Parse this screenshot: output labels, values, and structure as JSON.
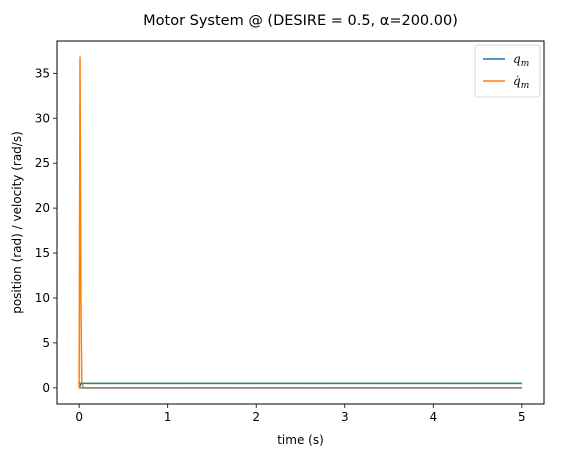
{
  "chart_data": {
    "type": "line",
    "title": "Motor System @ (DESIRE = 0.5, α=200.00)",
    "xlabel": "time (s)",
    "ylabel": "position (rad) / velocity (rad/s)",
    "xlim": [
      -0.25,
      5.25
    ],
    "ylim": [
      -1.8,
      38.6
    ],
    "xticks": [
      0,
      1,
      2,
      3,
      4,
      5
    ],
    "yticks": [
      0,
      5,
      10,
      15,
      20,
      25,
      30,
      35
    ],
    "grid": false,
    "legend_position": "top-right",
    "series": [
      {
        "name": "q_m",
        "legend_main": "q",
        "legend_sub": "m",
        "color": "#1f77b4",
        "dash": "solid",
        "x": [
          0,
          0.02,
          0.04,
          0.06,
          0.1,
          0.5,
          1,
          2,
          3,
          4,
          5
        ],
        "y": [
          0,
          0.45,
          0.5,
          0.5,
          0.5,
          0.5,
          0.5,
          0.5,
          0.5,
          0.5,
          0.5
        ]
      },
      {
        "name": "q̇_m",
        "legend_main": "q̇",
        "legend_sub": "m",
        "color": "#ff7f0e",
        "dash": "solid",
        "x": [
          0,
          0.01,
          0.02,
          0.03,
          0.05,
          0.1,
          1,
          2,
          3,
          4,
          5
        ],
        "y": [
          0,
          36.8,
          10,
          0.5,
          0,
          0,
          0,
          0,
          0,
          0,
          0
        ]
      },
      {
        "name": "desired",
        "color": "#2ca02c",
        "dash": "dashed",
        "x": [
          0,
          5
        ],
        "y": [
          0.5,
          0.5
        ]
      },
      {
        "name": "zero",
        "color": "#7f7f7f",
        "dash": "solid",
        "x": [
          0,
          5
        ],
        "y": [
          0,
          0
        ]
      }
    ]
  }
}
